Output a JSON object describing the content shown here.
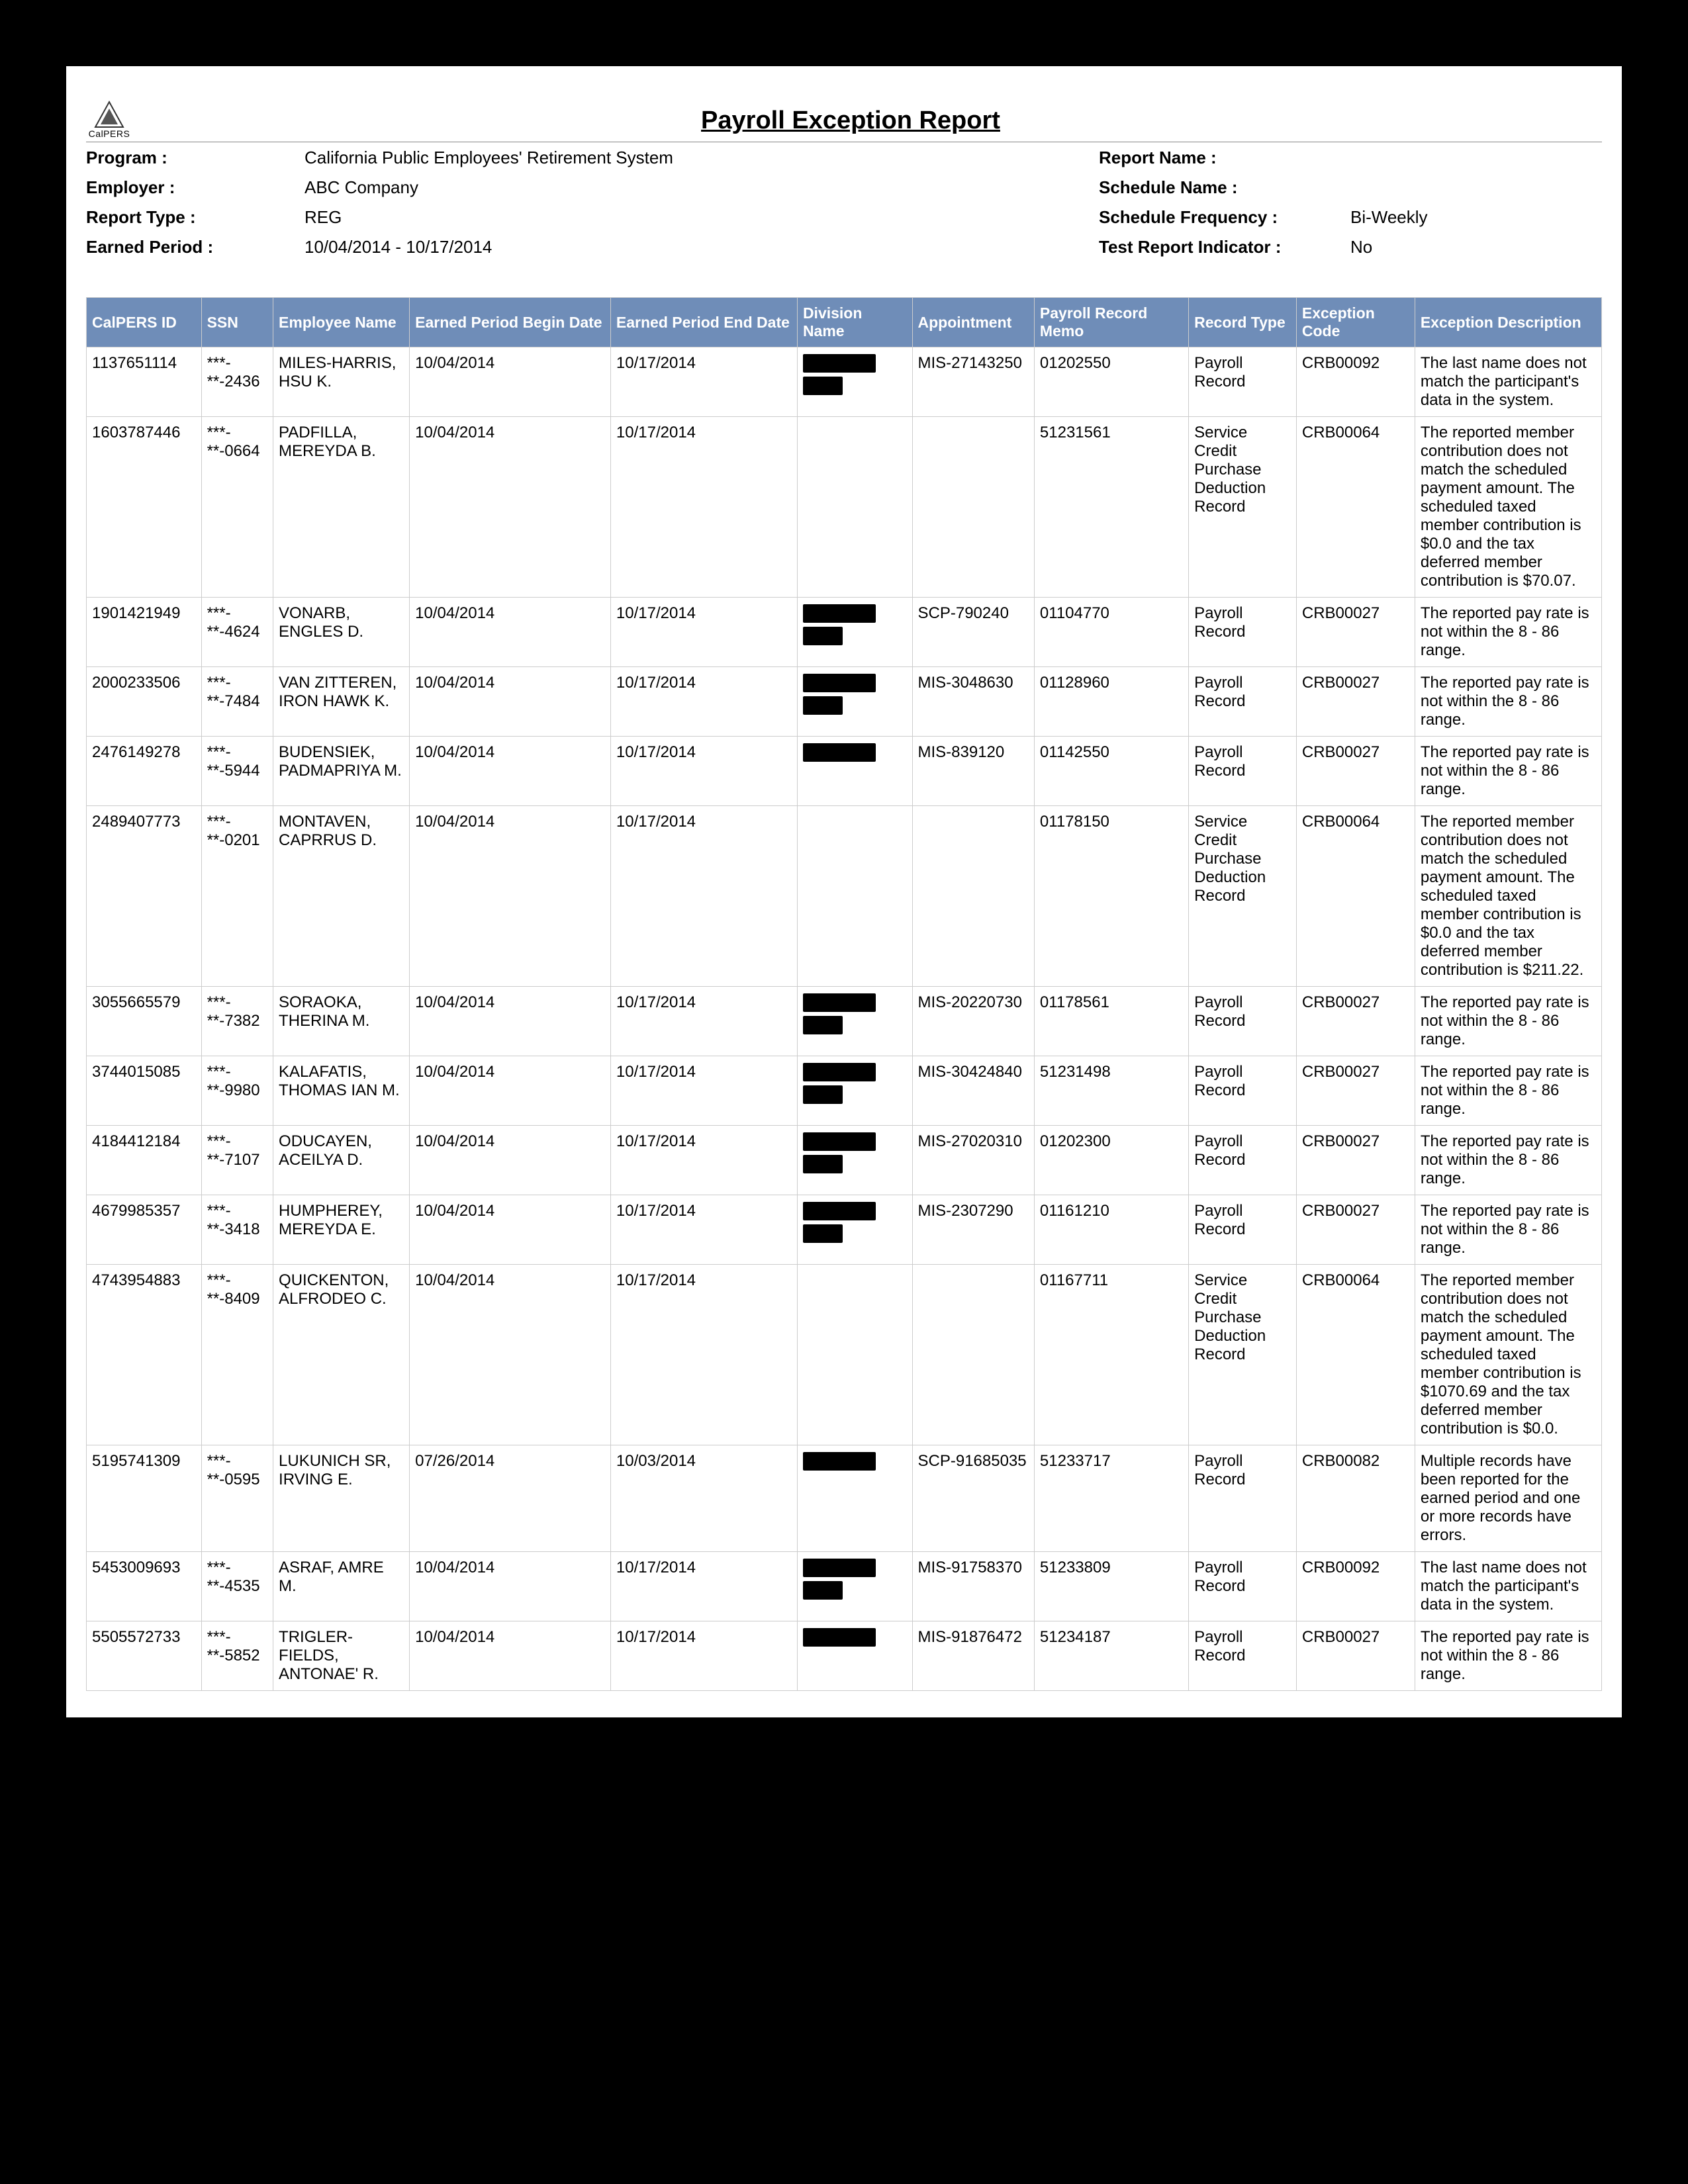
{
  "title": "Payroll Exception Report",
  "logo_text": "CalPERS",
  "meta": {
    "left": [
      {
        "label": "Program :",
        "value": "California Public Employees' Retirement System"
      },
      {
        "label": "Employer :",
        "value": "ABC Company"
      },
      {
        "label": "Report Type :",
        "value": "REG"
      },
      {
        "label": "Earned Period :",
        "value": "10/04/2014 - 10/17/2014"
      }
    ],
    "right": [
      {
        "label": "Report Name :",
        "value": ""
      },
      {
        "label": "Schedule Name :",
        "value": ""
      },
      {
        "label": "Schedule Frequency :",
        "value": "Bi-Weekly"
      },
      {
        "label": "Test Report Indicator :",
        "value": "No"
      }
    ]
  },
  "columns": [
    "CalPERS ID",
    "SSN",
    "Employee Name",
    "Earned Period Begin Date",
    "Earned Period End Date",
    "Division Name",
    "Appointment",
    "Payroll Record Memo",
    "Record Type",
    "Exception Code",
    "Exception Description"
  ],
  "rows": [
    {
      "id": "1137651114",
      "ssn": "***-**-2436",
      "name": "MILES-HARRIS, HSU K.",
      "begin": "10/04/2014",
      "end": "10/17/2014",
      "division_redactions": [
        {
          "w": 110,
          "h": 28
        },
        {
          "w": 60,
          "h": 28
        }
      ],
      "appointment": "MIS-27143250",
      "memo": "01202550",
      "record": "Payroll Record",
      "code": "CRB00092",
      "desc": "The last name does not match the participant's data in the system."
    },
    {
      "id": "1603787446",
      "ssn": "***-**-0664",
      "name": "PADFILLA, MEREYDA B.",
      "begin": "10/04/2014",
      "end": "10/17/2014",
      "division_redactions": [],
      "appointment": "",
      "memo": "51231561",
      "record": "Service Credit Purchase Deduction Record",
      "code": "CRB00064",
      "desc": "The reported member contribution does not match the scheduled payment amount. The scheduled taxed member contribution is $0.0 and the tax deferred member contribution is $70.07."
    },
    {
      "id": "1901421949",
      "ssn": "***-**-4624",
      "name": "VONARB, ENGLES D.",
      "begin": "10/04/2014",
      "end": "10/17/2014",
      "division_redactions": [
        {
          "w": 110,
          "h": 28
        },
        {
          "w": 60,
          "h": 28
        }
      ],
      "appointment": "SCP-790240",
      "memo": "01104770",
      "record": "Payroll Record",
      "code": "CRB00027",
      "desc": "The reported pay rate is not within the 8 - 86 range."
    },
    {
      "id": "2000233506",
      "ssn": "***-**-7484",
      "name": "VAN ZITTEREN, IRON HAWK K.",
      "begin": "10/04/2014",
      "end": "10/17/2014",
      "division_redactions": [
        {
          "w": 110,
          "h": 28
        },
        {
          "w": 60,
          "h": 28
        }
      ],
      "appointment": "MIS-3048630",
      "memo": "01128960",
      "record": "Payroll Record",
      "code": "CRB00027",
      "desc": "The reported pay rate is not within the 8 - 86 range."
    },
    {
      "id": "2476149278",
      "ssn": "***-**-5944",
      "name": "BUDENSIEK, PADMAPRIYA M.",
      "begin": "10/04/2014",
      "end": "10/17/2014",
      "division_redactions": [
        {
          "w": 110,
          "h": 28
        }
      ],
      "appointment": "MIS-839120",
      "memo": "01142550",
      "record": "Payroll Record",
      "code": "CRB00027",
      "desc": "The reported pay rate is not within the 8 - 86 range."
    },
    {
      "id": "2489407773",
      "ssn": "***-**-0201",
      "name": "MONTAVEN, CAPRRUS D.",
      "begin": "10/04/2014",
      "end": "10/17/2014",
      "division_redactions": [],
      "appointment": "",
      "memo": "01178150",
      "record": "Service Credit Purchase Deduction Record",
      "code": "CRB00064",
      "desc": "The reported member contribution does not match the scheduled payment amount. The scheduled taxed member contribution is $0.0 and the tax deferred member contribution is $211.22."
    },
    {
      "id": "3055665579",
      "ssn": "***-**-7382",
      "name": "SORAOKA, THERINA M.",
      "begin": "10/04/2014",
      "end": "10/17/2014",
      "division_redactions": [
        {
          "w": 110,
          "h": 28
        },
        {
          "w": 60,
          "h": 28
        }
      ],
      "appointment": "MIS-20220730",
      "memo": "01178561",
      "record": "Payroll Record",
      "code": "CRB00027",
      "desc": "The reported pay rate is not within the 8 - 86 range."
    },
    {
      "id": "3744015085",
      "ssn": "***-**-9980",
      "name": "KALAFATIS, THOMAS IAN M.",
      "begin": "10/04/2014",
      "end": "10/17/2014",
      "division_redactions": [
        {
          "w": 110,
          "h": 28
        },
        {
          "w": 60,
          "h": 28
        }
      ],
      "appointment": "MIS-30424840",
      "memo": "51231498",
      "record": "Payroll Record",
      "code": "CRB00027",
      "desc": "The reported pay rate is not within the 8 - 86 range."
    },
    {
      "id": "4184412184",
      "ssn": "***-**-7107",
      "name": "ODUCAYEN, ACEILYA D.",
      "begin": "10/04/2014",
      "end": "10/17/2014",
      "division_redactions": [
        {
          "w": 110,
          "h": 28
        },
        {
          "w": 60,
          "h": 28
        }
      ],
      "appointment": "MIS-27020310",
      "memo": "01202300",
      "record": "Payroll Record",
      "code": "CRB00027",
      "desc": "The reported pay rate is not within the 8 - 86 range."
    },
    {
      "id": "4679985357",
      "ssn": "***-**-3418",
      "name": "HUMPHEREY, MEREYDA E.",
      "begin": "10/04/2014",
      "end": "10/17/2014",
      "division_redactions": [
        {
          "w": 110,
          "h": 28
        },
        {
          "w": 60,
          "h": 28
        }
      ],
      "appointment": "MIS-2307290",
      "memo": "01161210",
      "record": "Payroll Record",
      "code": "CRB00027",
      "desc": "The reported pay rate is not within the 8 - 86 range."
    },
    {
      "id": "4743954883",
      "ssn": "***-**-8409",
      "name": "QUICKENTON, ALFRODEO C.",
      "begin": "10/04/2014",
      "end": "10/17/2014",
      "division_redactions": [],
      "appointment": "",
      "memo": "01167711",
      "record": "Service Credit Purchase Deduction Record",
      "code": "CRB00064",
      "desc": "The reported member contribution does not match the scheduled payment amount. The scheduled taxed member contribution is $1070.69 and the tax deferred member contribution is $0.0."
    },
    {
      "id": "5195741309",
      "ssn": "***-**-0595",
      "name": "LUKUNICH SR, IRVING E.",
      "begin": "07/26/2014",
      "end": "10/03/2014",
      "division_redactions": [
        {
          "w": 110,
          "h": 28
        }
      ],
      "appointment": "SCP-91685035",
      "memo": "51233717",
      "record": "Payroll Record",
      "code": "CRB00082",
      "desc": "Multiple records have been reported for the earned period and one or more records have errors."
    },
    {
      "id": "5453009693",
      "ssn": "***-**-4535",
      "name": "ASRAF, AMRE M.",
      "begin": "10/04/2014",
      "end": "10/17/2014",
      "division_redactions": [
        {
          "w": 110,
          "h": 28
        },
        {
          "w": 60,
          "h": 28
        }
      ],
      "appointment": "MIS-91758370",
      "memo": "51233809",
      "record": "Payroll Record",
      "code": "CRB00092",
      "desc": "The last name does not match the participant's data in the system."
    },
    {
      "id": "5505572733",
      "ssn": "***-**-5852",
      "name": "TRIGLER-FIELDS, ANTONAE' R.",
      "begin": "10/04/2014",
      "end": "10/17/2014",
      "division_redactions": [
        {
          "w": 110,
          "h": 28
        }
      ],
      "appointment": "MIS-91876472",
      "memo": "51234187",
      "record": "Payroll Record",
      "code": "CRB00027",
      "desc": "The reported pay rate is not within the 8 - 86 range."
    }
  ]
}
